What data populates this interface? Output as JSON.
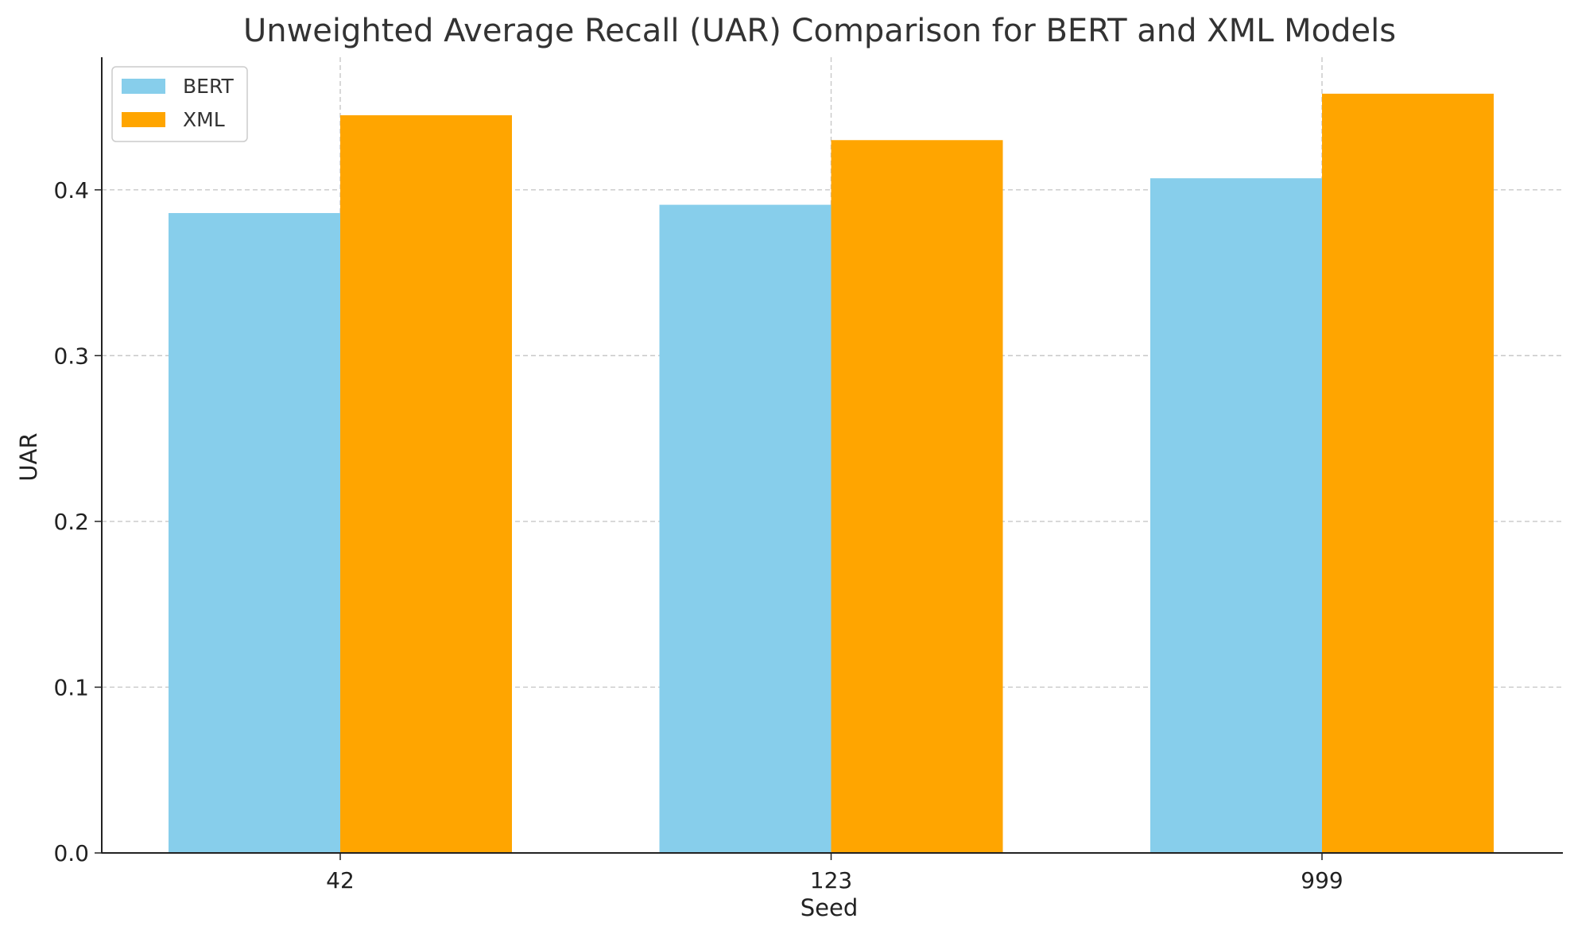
{
  "chart_data": {
    "type": "bar",
    "title": "Unweighted Average Recall (UAR) Comparison for BERT and XML Models",
    "xlabel": "Seed",
    "ylabel": "UAR",
    "categories": [
      "42",
      "123",
      "999"
    ],
    "series": [
      {
        "name": "BERT",
        "color": "#87CEEB",
        "values": [
          0.386,
          0.391,
          0.407
        ]
      },
      {
        "name": "XML",
        "color": "#FFA500",
        "values": [
          0.445,
          0.43,
          0.458
        ]
      }
    ],
    "ylim": [
      0,
      0.48
    ],
    "yticks": [
      0.0,
      0.1,
      0.2,
      0.3,
      0.4
    ],
    "ytick_labels": [
      "0.0",
      "0.1",
      "0.2",
      "0.3",
      "0.4"
    ],
    "grid": true,
    "legend_position": "top-left"
  }
}
